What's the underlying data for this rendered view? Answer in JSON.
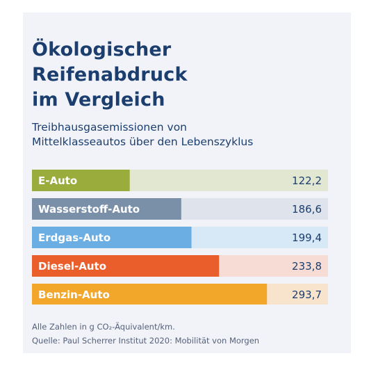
{
  "header": {
    "title_lines": [
      "Ökologischer",
      "Reifenabdruck",
      "im Vergleich"
    ],
    "subtitle_lines": [
      "Treibhausgasemissionen von",
      "Mittelklasseautos über den Lebenszyklus"
    ]
  },
  "footer": {
    "units_note": "Alle Zahlen in g CO₂-Äquivalent/km.",
    "source": "Quelle: Paul Scherrer Institut 2020: Mobilität von Morgen"
  },
  "chart_data": {
    "type": "bar",
    "orientation": "horizontal",
    "categories": [
      "E-Auto",
      "Wasserstoff-Auto",
      "Erdgas-Auto",
      "Diesel-Auto",
      "Benzin-Auto"
    ],
    "values": [
      122.2,
      186.6,
      199.4,
      233.8,
      293.7
    ],
    "value_labels": [
      "122,2",
      "186,6",
      "199,4",
      "233,8",
      "293,7"
    ],
    "xlim": [
      0,
      370
    ],
    "colors": [
      "#9aac3c",
      "#7a8fa8",
      "#6aaee3",
      "#e95e2a",
      "#f2a72a"
    ],
    "track_colors": [
      "#e1e7d1",
      "#dfe3ec",
      "#d7e8f7",
      "#f7dcd5",
      "#f8e4cc"
    ],
    "label_color": "#ffffff",
    "value_color": "#1b3e6e"
  }
}
